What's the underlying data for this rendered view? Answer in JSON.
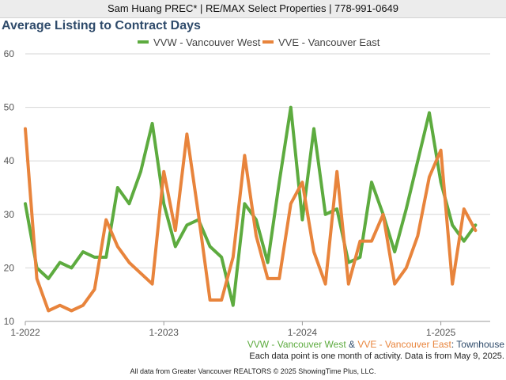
{
  "header": {
    "text": "Sam Huang PREC* | RE/MAX Select Properties | 778-991-0649"
  },
  "colors": {
    "west": "#5dab3f",
    "east": "#e8843c",
    "title": "#2f4b6b",
    "grid": "#d6d6d6"
  },
  "footer": {
    "series_west": "VVW - Vancouver West",
    "amp": " & ",
    "series_east": "VVE - Vancouver East",
    "colon": ": ",
    "property_type": "Townhouse",
    "note": "Each data point is one month of activity. Data is from May 9, 2025.",
    "source": "All data from Greater Vancouver REALTORS © 2025 ShowingTime Plus, LLC."
  },
  "chart_data": {
    "type": "line",
    "title": "Average Listing to Contract Days",
    "xlabel": "",
    "ylabel": "",
    "ylim": [
      10,
      60
    ],
    "yticks": [
      10,
      20,
      30,
      40,
      50,
      60
    ],
    "xticks": [
      "1-2022",
      "1-2023",
      "1-2024",
      "1-2025"
    ],
    "x": [
      "2022-01",
      "2022-02",
      "2022-03",
      "2022-04",
      "2022-05",
      "2022-06",
      "2022-07",
      "2022-08",
      "2022-09",
      "2022-10",
      "2022-11",
      "2022-12",
      "2023-01",
      "2023-02",
      "2023-03",
      "2023-04",
      "2023-05",
      "2023-06",
      "2023-07",
      "2023-08",
      "2023-09",
      "2023-10",
      "2023-11",
      "2023-12",
      "2024-01",
      "2024-02",
      "2024-03",
      "2024-04",
      "2024-05",
      "2024-06",
      "2024-07",
      "2024-08",
      "2024-09",
      "2024-10",
      "2024-11",
      "2024-12",
      "2025-01",
      "2025-02",
      "2025-03",
      "2025-04"
    ],
    "legend_position": "top-center",
    "grid": true,
    "series": [
      {
        "name": "VVW - Vancouver West",
        "color": "#5dab3f",
        "values": [
          32,
          20,
          18,
          21,
          20,
          23,
          22,
          22,
          35,
          32,
          38,
          47,
          32,
          24,
          28,
          29,
          24,
          22,
          13,
          32,
          29,
          21,
          36,
          50,
          29,
          46,
          30,
          31,
          21,
          22,
          36,
          30,
          23,
          31,
          40,
          49,
          36,
          28,
          25,
          28
        ]
      },
      {
        "name": "VVE - Vancouver East",
        "color": "#e8843c",
        "values": [
          46,
          18,
          12,
          13,
          12,
          13,
          16,
          29,
          24,
          21,
          19,
          17,
          38,
          27,
          45,
          30,
          14,
          14,
          22,
          41,
          26,
          18,
          18,
          32,
          36,
          23,
          17,
          38,
          17,
          25,
          25,
          30,
          17,
          20,
          26,
          37,
          42,
          17,
          31,
          27
        ]
      }
    ]
  }
}
